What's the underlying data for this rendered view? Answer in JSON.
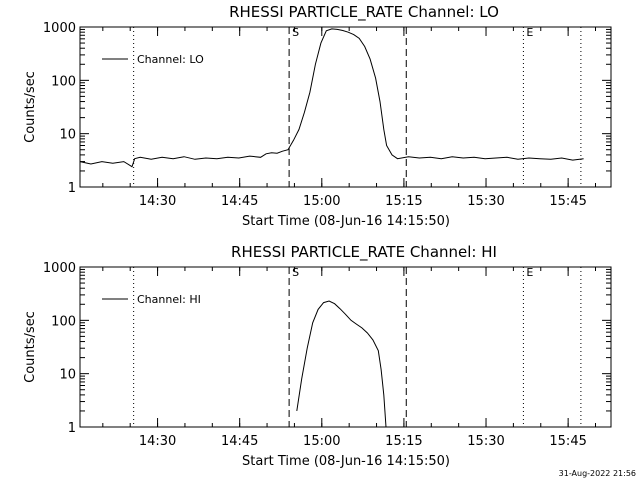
{
  "footer": {
    "timestamp": "31-Aug-2022 21:56"
  },
  "chart_data": [
    {
      "type": "line",
      "title": "RHESSI PARTICLE_RATE Channel: LO",
      "xlabel": "Start Time (08-Jun-16 14:15:50)",
      "ylabel": "Counts/sec",
      "yscale": "log",
      "ylim": [
        1,
        1000
      ],
      "xlim_minutes": [
        0,
        97
      ],
      "y_ticks": [
        1,
        10,
        100,
        1000
      ],
      "y_tick_labels": [
        "1",
        "10",
        "100",
        "1000"
      ],
      "x_ticks_minutes": [
        14.17,
        29.17,
        44.17,
        59.17,
        74.17,
        89.17
      ],
      "x_tick_labels": [
        "14:30",
        "14:45",
        "15:00",
        "15:15",
        "15:30",
        "15:45"
      ],
      "legend": [
        "Channel: LO"
      ],
      "markers": [
        {
          "label": "S",
          "x_minutes": 38.2,
          "style": "dashed"
        },
        {
          "label": "",
          "x_minutes": 59.6,
          "style": "dashed"
        },
        {
          "label": "",
          "x_minutes": 9.8,
          "style": "dotted"
        },
        {
          "label": "E",
          "x_minutes": 81.0,
          "style": "dotted"
        },
        {
          "label": "",
          "x_minutes": 91.5,
          "style": "dotted"
        }
      ],
      "series": [
        {
          "name": "Channel: LO",
          "x": [
            0,
            2,
            4,
            6,
            8,
            9.5,
            10,
            11,
            13,
            15,
            17,
            19,
            21,
            23,
            25,
            27,
            29,
            31,
            33,
            34,
            35,
            36,
            37,
            38,
            39,
            40,
            41,
            42,
            43,
            44,
            45,
            46,
            47,
            48,
            49,
            50,
            51,
            52,
            53,
            54,
            54.8,
            55.5,
            56,
            57,
            58,
            60,
            62,
            64,
            66,
            68,
            70,
            72,
            74,
            76,
            78,
            80,
            82,
            84,
            86,
            88,
            90,
            92
          ],
          "values": [
            3.0,
            2.7,
            3.0,
            2.8,
            3.0,
            2.4,
            3.4,
            3.6,
            3.3,
            3.6,
            3.4,
            3.7,
            3.3,
            3.5,
            3.4,
            3.6,
            3.5,
            3.8,
            3.6,
            4.2,
            4.4,
            4.3,
            4.7,
            5.0,
            7.5,
            12,
            25,
            60,
            200,
            500,
            850,
            920,
            900,
            860,
            800,
            720,
            610,
            430,
            250,
            110,
            40,
            12,
            6,
            4.0,
            3.4,
            3.7,
            3.5,
            3.6,
            3.4,
            3.7,
            3.5,
            3.6,
            3.4,
            3.5,
            3.6,
            3.3,
            3.5,
            3.4,
            3.3,
            3.5,
            3.2,
            3.4
          ]
        }
      ]
    },
    {
      "type": "line",
      "title": "RHESSI PARTICLE_RATE Channel: HI",
      "xlabel": "Start Time (08-Jun-16 14:15:50)",
      "ylabel": "Counts/sec",
      "yscale": "log",
      "ylim": [
        1,
        1000
      ],
      "xlim_minutes": [
        0,
        97
      ],
      "y_ticks": [
        1,
        10,
        100,
        1000
      ],
      "y_tick_labels": [
        "1",
        "10",
        "100",
        "1000"
      ],
      "x_ticks_minutes": [
        14.17,
        29.17,
        44.17,
        59.17,
        74.17,
        89.17
      ],
      "x_tick_labels": [
        "14:30",
        "14:45",
        "15:00",
        "15:15",
        "15:30",
        "15:45"
      ],
      "legend": [
        "Channel: HI"
      ],
      "markers": [
        {
          "label": "S",
          "x_minutes": 38.2,
          "style": "dashed"
        },
        {
          "label": "",
          "x_minutes": 59.6,
          "style": "dashed"
        },
        {
          "label": "",
          "x_minutes": 9.8,
          "style": "dotted"
        },
        {
          "label": "E",
          "x_minutes": 81.0,
          "style": "dotted"
        },
        {
          "label": "",
          "x_minutes": 91.5,
          "style": "dotted"
        }
      ],
      "series": [
        {
          "name": "Channel: HI",
          "x": [
            39.6,
            40.5,
            41.5,
            42.5,
            43.5,
            44.5,
            45.5,
            46.5,
            47.5,
            48.5,
            49.5,
            50.5,
            51.5,
            52.5,
            53.5,
            54.5,
            55.0,
            55.5,
            55.9
          ],
          "values": [
            2,
            8,
            30,
            90,
            160,
            215,
            230,
            205,
            165,
            130,
            100,
            85,
            72,
            58,
            43,
            27,
            12,
            4,
            1
          ]
        }
      ]
    }
  ]
}
